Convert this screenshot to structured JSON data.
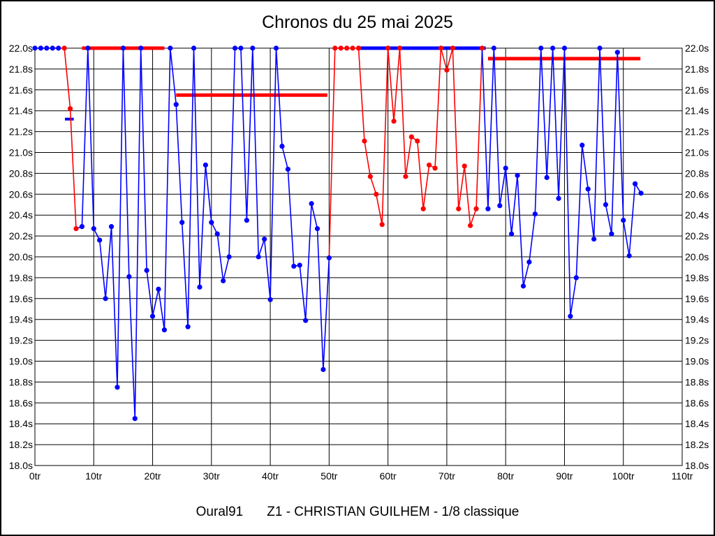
{
  "chart_data": {
    "type": "line",
    "title": "Chronos du 25 mai 2025",
    "footer": {
      "club": "Oural91",
      "driver": "Z1 - CHRISTIAN GUILHEM - 1/8 classique"
    },
    "x_unit": "tr",
    "y_unit": "s",
    "xlim": [
      0,
      110
    ],
    "ylim": [
      18.0,
      22.0
    ],
    "clip_max": 22.0,
    "grid": "on",
    "x_ticks": [
      "0tr",
      "10tr",
      "20tr",
      "30tr",
      "40tr",
      "50tr",
      "60tr",
      "70tr",
      "80tr",
      "90tr",
      "100tr",
      "110tr"
    ],
    "x_tick_values": [
      0,
      10,
      20,
      30,
      40,
      50,
      60,
      70,
      80,
      90,
      100,
      110
    ],
    "y_ticks": [
      "22.0s",
      "21.8s",
      "21.6s",
      "21.4s",
      "21.2s",
      "21.0s",
      "20.8s",
      "20.6s",
      "20.4s",
      "20.2s",
      "20.0s",
      "19.8s",
      "19.6s",
      "19.4s",
      "19.2s",
      "19.0s",
      "18.8s",
      "18.6s",
      "18.4s",
      "18.2s",
      "18.0s"
    ],
    "y_tick_values": [
      22.0,
      21.8,
      21.6,
      21.4,
      21.2,
      21.0,
      20.8,
      20.6,
      20.4,
      20.2,
      20.0,
      19.8,
      19.6,
      19.4,
      19.2,
      19.0,
      18.8,
      18.6,
      18.4,
      18.2,
      18.0
    ],
    "colors": {
      "b": "#0000ff",
      "r": "#ff0000",
      "grid": "#000000",
      "text": "#000000"
    },
    "series": [
      {
        "name": "lap-times",
        "points": [
          [
            0,
            22.0,
            "b"
          ],
          [
            1,
            22.0,
            "b"
          ],
          [
            2,
            22.0,
            "b"
          ],
          [
            3,
            22.0,
            "b"
          ],
          [
            4,
            22.0,
            "b"
          ],
          [
            5,
            22.0,
            "r"
          ],
          [
            6,
            21.42,
            "r"
          ],
          [
            7,
            20.27,
            "r"
          ],
          [
            8,
            20.29,
            "b"
          ],
          [
            9,
            22.0,
            "b"
          ],
          [
            10,
            20.27,
            "b"
          ],
          [
            11,
            20.16,
            "b"
          ],
          [
            12,
            19.6,
            "b"
          ],
          [
            13,
            20.29,
            "b"
          ],
          [
            14,
            18.75,
            "b"
          ],
          [
            15,
            22.0,
            "b"
          ],
          [
            16,
            19.81,
            "b"
          ],
          [
            17,
            18.45,
            "b"
          ],
          [
            18,
            22.0,
            "b"
          ],
          [
            19,
            19.87,
            "b"
          ],
          [
            20,
            19.43,
            "b"
          ],
          [
            21,
            19.69,
            "b"
          ],
          [
            22,
            19.3,
            "b"
          ],
          [
            23,
            22.0,
            "b"
          ],
          [
            24,
            21.46,
            "b"
          ],
          [
            25,
            20.33,
            "b"
          ],
          [
            26,
            19.33,
            "b"
          ],
          [
            27,
            22.0,
            "b"
          ],
          [
            28,
            19.71,
            "b"
          ],
          [
            29,
            20.88,
            "b"
          ],
          [
            30,
            20.33,
            "b"
          ],
          [
            31,
            20.22,
            "b"
          ],
          [
            32,
            19.77,
            "b"
          ],
          [
            33,
            20.0,
            "b"
          ],
          [
            34,
            22.0,
            "b"
          ],
          [
            35,
            22.0,
            "b"
          ],
          [
            36,
            20.35,
            "b"
          ],
          [
            37,
            22.0,
            "b"
          ],
          [
            38,
            20.0,
            "b"
          ],
          [
            39,
            20.17,
            "b"
          ],
          [
            40,
            19.59,
            "b"
          ],
          [
            41,
            22.0,
            "b"
          ],
          [
            42,
            21.06,
            "b"
          ],
          [
            43,
            20.84,
            "b"
          ],
          [
            44,
            19.91,
            "b"
          ],
          [
            45,
            19.92,
            "b"
          ],
          [
            46,
            19.39,
            "b"
          ],
          [
            47,
            20.51,
            "b"
          ],
          [
            48,
            20.27,
            "b"
          ],
          [
            49,
            18.92,
            "b"
          ],
          [
            50,
            19.99,
            "b"
          ],
          [
            51,
            22.0,
            "r"
          ],
          [
            52,
            22.0,
            "r"
          ],
          [
            53,
            22.0,
            "r"
          ],
          [
            54,
            22.0,
            "r"
          ],
          [
            55,
            22.0,
            "r"
          ],
          [
            56,
            21.11,
            "r"
          ],
          [
            57,
            20.77,
            "r"
          ],
          [
            58,
            20.6,
            "r"
          ],
          [
            59,
            20.31,
            "r"
          ],
          [
            60,
            22.0,
            "r"
          ],
          [
            61,
            21.3,
            "r"
          ],
          [
            62,
            22.0,
            "r"
          ],
          [
            63,
            20.77,
            "r"
          ],
          [
            64,
            21.15,
            "r"
          ],
          [
            65,
            21.11,
            "r"
          ],
          [
            66,
            20.46,
            "r"
          ],
          [
            67,
            20.88,
            "r"
          ],
          [
            68,
            20.85,
            "r"
          ],
          [
            69,
            22.0,
            "r"
          ],
          [
            70,
            21.79,
            "r"
          ],
          [
            71,
            22.0,
            "r"
          ],
          [
            72,
            20.46,
            "r"
          ],
          [
            73,
            20.87,
            "r"
          ],
          [
            74,
            20.3,
            "r"
          ],
          [
            75,
            20.46,
            "r"
          ],
          [
            76,
            22.0,
            "r"
          ],
          [
            77,
            20.46,
            "b"
          ],
          [
            78,
            22.0,
            "b"
          ],
          [
            79,
            20.49,
            "b"
          ],
          [
            80,
            20.85,
            "b"
          ],
          [
            81,
            20.22,
            "b"
          ],
          [
            82,
            20.78,
            "b"
          ],
          [
            83,
            19.72,
            "b"
          ],
          [
            84,
            19.95,
            "b"
          ],
          [
            85,
            20.41,
            "b"
          ],
          [
            86,
            22.0,
            "b"
          ],
          [
            87,
            20.76,
            "b"
          ],
          [
            88,
            22.0,
            "b"
          ],
          [
            89,
            20.56,
            "b"
          ],
          [
            90,
            22.0,
            "b"
          ],
          [
            91,
            19.43,
            "b"
          ],
          [
            92,
            19.8,
            "b"
          ],
          [
            93,
            21.07,
            "b"
          ],
          [
            94,
            20.65,
            "b"
          ],
          [
            95,
            20.17,
            "b"
          ],
          [
            96,
            22.0,
            "b"
          ],
          [
            97,
            20.5,
            "b"
          ],
          [
            98,
            20.22,
            "b"
          ],
          [
            99,
            21.96,
            "b"
          ],
          [
            100,
            20.35,
            "b"
          ],
          [
            101,
            20.01,
            "b"
          ],
          [
            102,
            20.7,
            "b"
          ],
          [
            103,
            20.61,
            "b"
          ]
        ]
      }
    ],
    "reference_lines": [
      {
        "x1": 5.1,
        "x2": 6.6,
        "y": 21.32,
        "color": "b",
        "width": 4
      },
      {
        "x1": 8.0,
        "x2": 22.0,
        "y": 22.0,
        "color": "r",
        "width": 5
      },
      {
        "x1": 24.0,
        "x2": 49.7,
        "y": 21.55,
        "color": "r",
        "width": 5
      },
      {
        "x1": 54.8,
        "x2": 76.6,
        "y": 22.0,
        "color": "b",
        "width": 5
      },
      {
        "x1": 77.0,
        "x2": 102.9,
        "y": 21.9,
        "color": "r",
        "width": 5
      }
    ]
  }
}
